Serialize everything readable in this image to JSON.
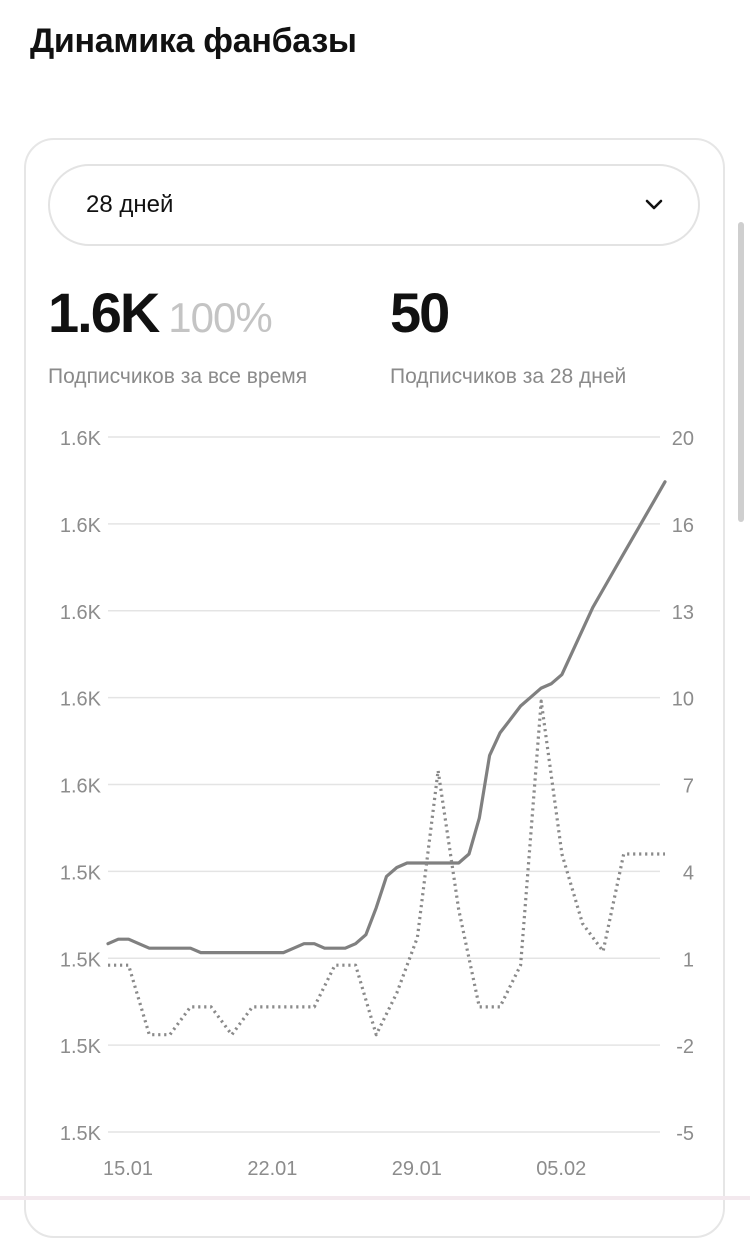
{
  "page": {
    "title": "Динамика фанбазы"
  },
  "period_select": {
    "value": "28 дней",
    "icon": "chevron-down-icon"
  },
  "stats": {
    "total": {
      "value": "1.6K",
      "percent": "100%",
      "caption": "Подписчиков за все время"
    },
    "period": {
      "value": "50",
      "caption": "Подписчиков за 28 дней"
    }
  },
  "chart_data": {
    "type": "line",
    "title": "",
    "xlabel": "",
    "ylabel": "",
    "x_tick_labels": [
      "15.01",
      "22.01",
      "29.01",
      "05.02"
    ],
    "x_tick_days": [
      0,
      7,
      14,
      21
    ],
    "y_left_tick_labels": [
      "1.6K",
      "1.6K",
      "1.6K",
      "1.6K",
      "1.6K",
      "1.5K",
      "1.5K",
      "1.5K",
      "1.5K"
    ],
    "y_right_tick_labels": [
      "20",
      "16",
      "13",
      "10",
      "7",
      "4",
      "1",
      "-2",
      "-5"
    ],
    "y_right_range": [
      -5,
      20
    ],
    "y_left_range": [
      1505,
      1660
    ],
    "grid": true,
    "legend": "none",
    "series": [
      {
        "axis": "left",
        "style": "solid",
        "color": "#808080",
        "x_days": [
          0,
          0.5,
          1,
          1.5,
          2,
          2.5,
          3,
          3.5,
          4,
          4.5,
          5,
          5.5,
          6,
          6.5,
          7,
          7.5,
          8,
          8.5,
          9,
          9.5,
          10,
          10.5,
          11,
          11.5,
          12,
          12.5,
          13,
          13.5,
          14,
          14.5,
          15,
          15.5,
          16,
          16.5,
          17,
          17.5,
          18,
          18.5,
          19,
          19.5,
          20,
          20.5,
          21,
          21.5,
          22,
          22.5,
          23,
          23.5,
          24,
          24.5,
          25,
          25.5,
          26,
          26.5,
          27
        ],
        "values": [
          1547,
          1548,
          1548,
          1547,
          1546,
          1546,
          1546,
          1546,
          1546,
          1545,
          1545,
          1545,
          1545,
          1545,
          1545,
          1545,
          1545,
          1545,
          1546,
          1547,
          1547,
          1546,
          1546,
          1546,
          1547,
          1549,
          1555,
          1562,
          1564,
          1565,
          1565,
          1565,
          1565,
          1565,
          1565,
          1567,
          1575,
          1589,
          1594,
          1597,
          1600,
          1602,
          1604,
          1605,
          1607,
          1612,
          1617,
          1622,
          1626,
          1630,
          1634,
          1638,
          1642,
          1646,
          1650
        ]
      },
      {
        "axis": "right",
        "style": "dotted",
        "color": "#8a8a8a",
        "x_days": [
          0,
          1,
          2,
          3,
          4,
          5,
          6,
          7,
          8,
          9,
          10,
          11,
          12,
          13,
          14,
          15,
          16,
          17,
          18,
          19,
          20,
          21,
          22,
          23,
          24,
          25,
          26,
          27
        ],
        "values": [
          1,
          1,
          -1.5,
          -1.5,
          -0.5,
          -0.5,
          -1.5,
          -0.5,
          -0.5,
          -0.5,
          -0.5,
          1,
          1,
          -1.5,
          0,
          2,
          8,
          3,
          -0.5,
          -0.5,
          1,
          10.5,
          5,
          2.5,
          1.5,
          5,
          5,
          5
        ]
      }
    ]
  }
}
